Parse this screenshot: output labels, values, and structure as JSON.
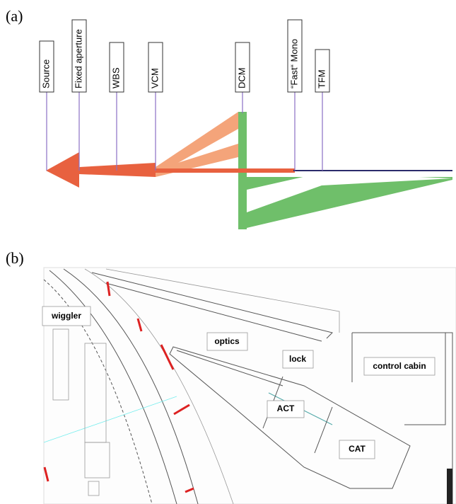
{
  "panel_a": {
    "label": "(a)",
    "components": [
      "Source",
      "Fixed aperture",
      "WBS",
      "VCM",
      "DCM",
      "“Fast“ Mono",
      "TFM"
    ]
  },
  "panel_b": {
    "label": "(b)",
    "areas": [
      "wiggler",
      "optics",
      "lock",
      "control cabin",
      "ACT",
      "CAT"
    ]
  }
}
